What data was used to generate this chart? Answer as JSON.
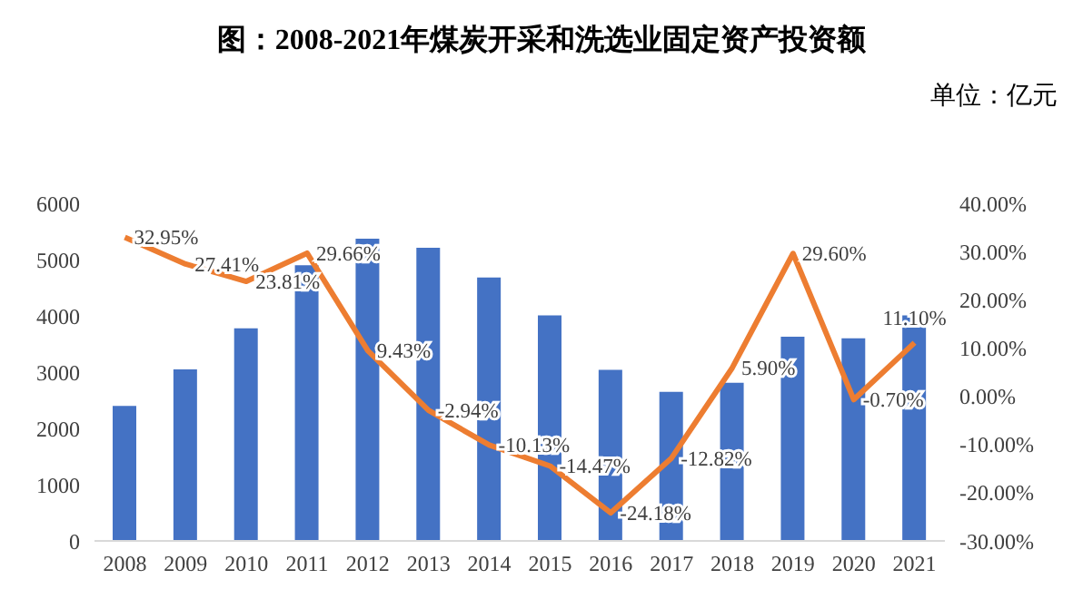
{
  "chart_data": {
    "type": "bar",
    "title": "图：2008-2021年煤炭开采和洗选业固定资产投资额",
    "annotations": [
      "单位：亿元"
    ],
    "categories": [
      "2008",
      "2009",
      "2010",
      "2011",
      "2012",
      "2013",
      "2014",
      "2015",
      "2016",
      "2017",
      "2018",
      "2019",
      "2020",
      "2021"
    ],
    "series": [
      {
        "color": "#4472c4",
        "values": [
          2400,
          3050,
          3780,
          4900,
          5370,
          5210,
          4680,
          4010,
          3040,
          2650,
          2810,
          3630,
          3600,
          4010
        ]
      },
      {
        "type": "line",
        "axis": "y2",
        "color": "#ed7d31",
        "values": [
          32.95,
          27.41,
          23.81,
          29.66,
          9.43,
          -2.94,
          -10.13,
          -14.47,
          -24.18,
          -12.82,
          5.9,
          29.6,
          -0.7,
          11.1
        ],
        "value_labels": [
          "32.95%",
          "27.41%",
          "23.81%",
          "29.66%",
          "9.43%",
          "-2.94%",
          "-10.13%",
          "-14.47%",
          "-24.18%",
          "-12.82%",
          "5.90%",
          "29.60%",
          "-0.70%",
          "11.10%"
        ]
      }
    ],
    "ylim": [
      0,
      6000
    ],
    "yticks": [
      0,
      1000,
      2000,
      3000,
      4000,
      5000,
      6000
    ],
    "y2lim": [
      -30,
      40
    ],
    "y2ticks": [
      {
        "value": -30,
        "label": "-30.00%"
      },
      {
        "value": -20,
        "label": "-20.00%"
      },
      {
        "value": -10,
        "label": "-10.00%"
      },
      {
        "value": 0,
        "label": "0.00%"
      },
      {
        "value": 10,
        "label": "10.00%"
      },
      {
        "value": 20,
        "label": "20.00%"
      },
      {
        "value": 30,
        "label": "30.00%"
      },
      {
        "value": 40,
        "label": "40.00%"
      }
    ],
    "grid": false,
    "legend": false,
    "marker": "none",
    "line_style": "solid"
  }
}
